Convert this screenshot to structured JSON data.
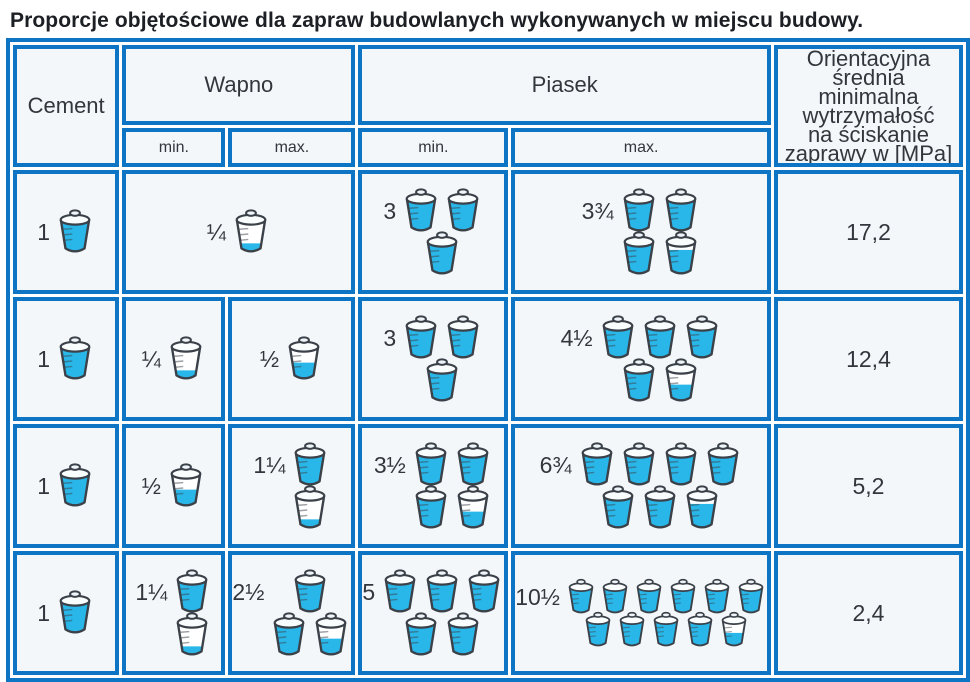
{
  "title": "Proporcje objętościowe dla zapraw budowlanych wykonywanych w miejscu budowy.",
  "colors": {
    "border_blue": "#0d75c3",
    "bucket_cyan": "#29b6e8",
    "cell_bg": "#f3f7fa",
    "ink": "#3b4149",
    "text": "#32373d"
  },
  "table": {
    "header": {
      "cement": "Cement",
      "wapno": "Wapno",
      "piasek": "Piasek",
      "min": "min.",
      "max": "max.",
      "strength_lines": [
        "Orientacyjna",
        "średnia minimalna",
        "wytrzymałość",
        "na ściskanie",
        "zaprawy w [MPa]"
      ]
    },
    "rows": [
      {
        "cement": {
          "label": "1",
          "rows": [
            [
              1
            ]
          ]
        },
        "wapno": {
          "span": true,
          "cells": [
            {
              "label": "¼",
              "rows": [
                [
                  0.25
                ]
              ]
            }
          ]
        },
        "piasek": {
          "cells": [
            {
              "label": "3",
              "rows": [
                [
                  1,
                  1
                ],
                [
                  1
                ]
              ]
            },
            {
              "label": "3¾",
              "rows": [
                [
                  1,
                  1
                ],
                [
                  1,
                  0.75
                ]
              ]
            }
          ]
        },
        "strength": "17,2"
      },
      {
        "cement": {
          "label": "1",
          "rows": [
            [
              1
            ]
          ]
        },
        "wapno": {
          "span": false,
          "cells": [
            {
              "label": "¼",
              "rows": [
                [
                  0.25
                ]
              ]
            },
            {
              "label": "½",
              "rows": [
                [
                  0.5
                ]
              ]
            }
          ]
        },
        "piasek": {
          "cells": [
            {
              "label": "3",
              "rows": [
                [
                  1,
                  1
                ],
                [
                  1
                ]
              ]
            },
            {
              "label": "4½",
              "rows": [
                [
                  1,
                  1,
                  1
                ],
                [
                  1,
                  0.5
                ]
              ]
            }
          ]
        },
        "strength": "12,4"
      },
      {
        "cement": {
          "label": "1",
          "rows": [
            [
              1
            ]
          ]
        },
        "wapno": {
          "span": false,
          "cells": [
            {
              "label": "½",
              "rows": [
                [
                  0.5
                ]
              ]
            },
            {
              "label": "1¼",
              "rows": [
                [
                  1
                ],
                [
                  0.25
                ]
              ]
            }
          ]
        },
        "piasek": {
          "cells": [
            {
              "label": "3½",
              "rows": [
                [
                  1,
                  1
                ],
                [
                  1,
                  0.5
                ]
              ]
            },
            {
              "label": "6¾",
              "rows": [
                [
                  1,
                  1,
                  1,
                  1
                ],
                [
                  1,
                  1,
                  0.75
                ]
              ]
            }
          ]
        },
        "strength": "5,2"
      },
      {
        "cement": {
          "label": "1",
          "rows": [
            [
              1
            ]
          ]
        },
        "wapno": {
          "span": false,
          "cells": [
            {
              "label": "1¼",
              "rows": [
                [
                  1
                ],
                [
                  0.25
                ]
              ]
            },
            {
              "label": "2½",
              "rows": [
                [
                  1
                ],
                [
                  1,
                  0.5
                ]
              ]
            }
          ]
        },
        "piasek": {
          "cells": [
            {
              "label": "5",
              "rows": [
                [
                  1,
                  1,
                  1
                ],
                [
                  1,
                  1
                ]
              ]
            },
            {
              "label": "10½",
              "rows": [
                [
                  1,
                  1,
                  1,
                  1,
                  1,
                  1
                ],
                [
                  1,
                  1,
                  1,
                  1,
                  0.5
                ]
              ]
            }
          ]
        },
        "strength": "2,4"
      }
    ]
  },
  "chart_data": {
    "type": "table",
    "title": "Proporcje objętościowe dla zapraw budowlanych wykonywanych w miejscu budowy.",
    "columns": [
      "Cement",
      "Wapno min.",
      "Wapno max.",
      "Piasek min.",
      "Piasek max.",
      "Orientacyjna średnia minimalna wytrzymałość na ściskanie zaprawy w [MPa]"
    ],
    "rows": [
      [
        1,
        0.25,
        0.25,
        3,
        3.75,
        17.2
      ],
      [
        1,
        0.25,
        0.5,
        3,
        4.5,
        12.4
      ],
      [
        1,
        0.5,
        1.25,
        3.5,
        6.75,
        5.2
      ],
      [
        1,
        1.25,
        2.5,
        5,
        10.5,
        2.4
      ]
    ]
  }
}
